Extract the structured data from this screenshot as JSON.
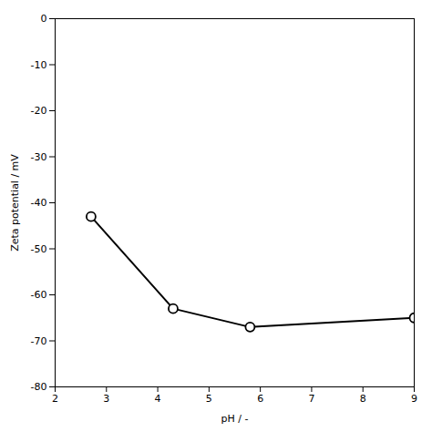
{
  "chart_data": {
    "type": "line",
    "x": [
      2.7,
      4.3,
      5.8,
      9.0
    ],
    "values": [
      -43,
      -63,
      -67,
      -65
    ],
    "xlabel": "pH / -",
    "ylabel": "Zeta potential / mV",
    "xlim": [
      2,
      9
    ],
    "ylim": [
      -80,
      0
    ],
    "xticks": [
      2,
      3,
      4,
      5,
      6,
      7,
      8,
      9
    ],
    "yticks": [
      0,
      -10,
      -20,
      -30,
      -40,
      -50,
      -60,
      -70,
      -80
    ],
    "color": "#000000",
    "marker": "circle",
    "grid": false
  }
}
